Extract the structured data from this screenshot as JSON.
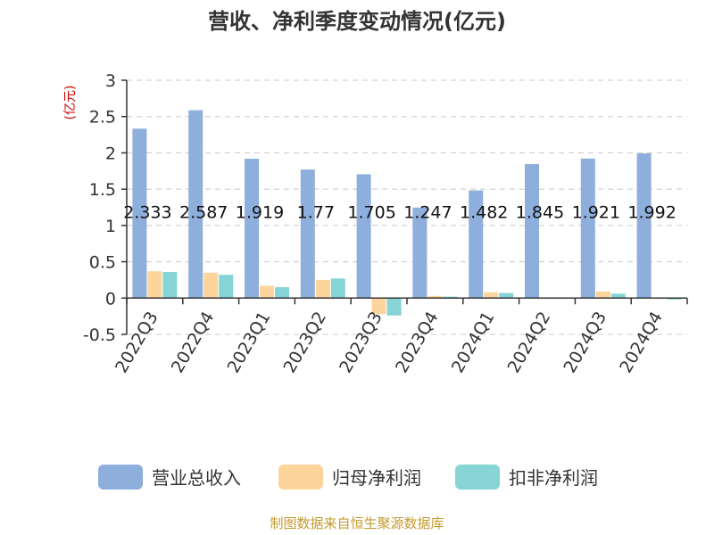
{
  "chart_data": {
    "type": "bar",
    "title": "营收、净利季度变动情况(亿元)",
    "ylabel": "(亿元)",
    "xlabel": "",
    "ylim": [
      -0.5,
      3
    ],
    "yticks": [
      "3",
      "2.5",
      "2",
      "1.5",
      "1",
      "0.5",
      "0",
      "-0.5"
    ],
    "yticks_values": [
      3,
      2.5,
      2,
      1.5,
      1,
      0.5,
      0,
      -0.5
    ],
    "grid": true,
    "legend_position": "bottom",
    "categories": [
      "2022Q3",
      "2022Q4",
      "2023Q1",
      "2023Q2",
      "2023Q3",
      "2023Q4",
      "2024Q1",
      "2024Q2",
      "2024Q3",
      "2024Q4"
    ],
    "series": [
      {
        "name": "营业总收入",
        "color": "#8eaedb",
        "values": [
          2.333,
          2.587,
          1.919,
          1.77,
          1.705,
          1.247,
          1.482,
          1.845,
          1.921,
          1.992
        ],
        "labels": [
          "2.333",
          "2.587",
          "1.919",
          "1.77",
          "1.705",
          "1.247",
          "1.482",
          "1.845",
          "1.921",
          "1.992"
        ]
      },
      {
        "name": "归母净利润",
        "color": "#fdd49b",
        "values": [
          0.37,
          0.35,
          0.17,
          0.25,
          -0.22,
          0.03,
          0.08,
          0.0,
          0.09,
          0.0
        ]
      },
      {
        "name": "扣非净利润",
        "color": "#86d4d6",
        "values": [
          0.36,
          0.32,
          0.15,
          0.27,
          -0.24,
          0.02,
          0.07,
          0.0,
          0.06,
          -0.02
        ]
      }
    ]
  },
  "footer": {
    "source": "制图数据来自恒生聚源数据库"
  }
}
